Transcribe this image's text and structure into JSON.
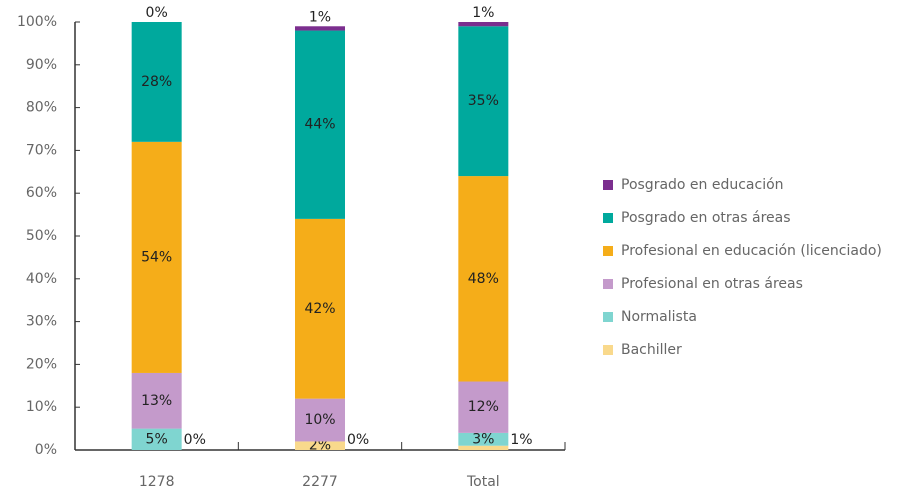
{
  "chart_data": {
    "type": "stacked_bar",
    "categories": [
      "1278",
      "2277",
      "Total"
    ],
    "series": [
      {
        "name": "Bachiller",
        "color": "#f9d98c",
        "values": [
          0,
          2,
          1
        ],
        "value_labels": [
          "0%",
          "2%",
          "1%"
        ]
      },
      {
        "name": "Normalista",
        "color": "#7fd5d0",
        "values": [
          5,
          0,
          3
        ],
        "value_labels": [
          "5%",
          "0%",
          "3%"
        ]
      },
      {
        "name": "Profesional en otras áreas",
        "color": "#c49acb",
        "values": [
          13,
          10,
          12
        ],
        "value_labels": [
          "13%",
          "10%",
          "12%"
        ]
      },
      {
        "name": "Profesional en educación (licenciado)",
        "color": "#f5ad19",
        "values": [
          54,
          42,
          48
        ],
        "value_labels": [
          "54%",
          "42%",
          "48%"
        ]
      },
      {
        "name": "Posgrado en otras áreas",
        "color": "#00a99d",
        "values": [
          28,
          44,
          35
        ],
        "value_labels": [
          "28%",
          "44%",
          "35%"
        ]
      },
      {
        "name": "Posgrado en educación",
        "color": "#7b2e8e",
        "values": [
          0,
          1,
          1
        ],
        "value_labels": [
          "0%",
          "1%",
          "1%"
        ]
      }
    ],
    "ylim": [
      0,
      100
    ],
    "yticks": [
      {
        "value": 0,
        "label": "0%"
      },
      {
        "value": 10,
        "label": "10%"
      },
      {
        "value": 20,
        "label": "20%"
      },
      {
        "value": 30,
        "label": "30%"
      },
      {
        "value": 40,
        "label": "40%"
      },
      {
        "value": 50,
        "label": "50%"
      },
      {
        "value": 60,
        "label": "60%"
      },
      {
        "value": 70,
        "label": "70%"
      },
      {
        "value": 80,
        "label": "80%"
      },
      {
        "value": 90,
        "label": "90%"
      },
      {
        "value": 100,
        "label": "100%"
      }
    ],
    "grid": false,
    "legend": "right"
  }
}
